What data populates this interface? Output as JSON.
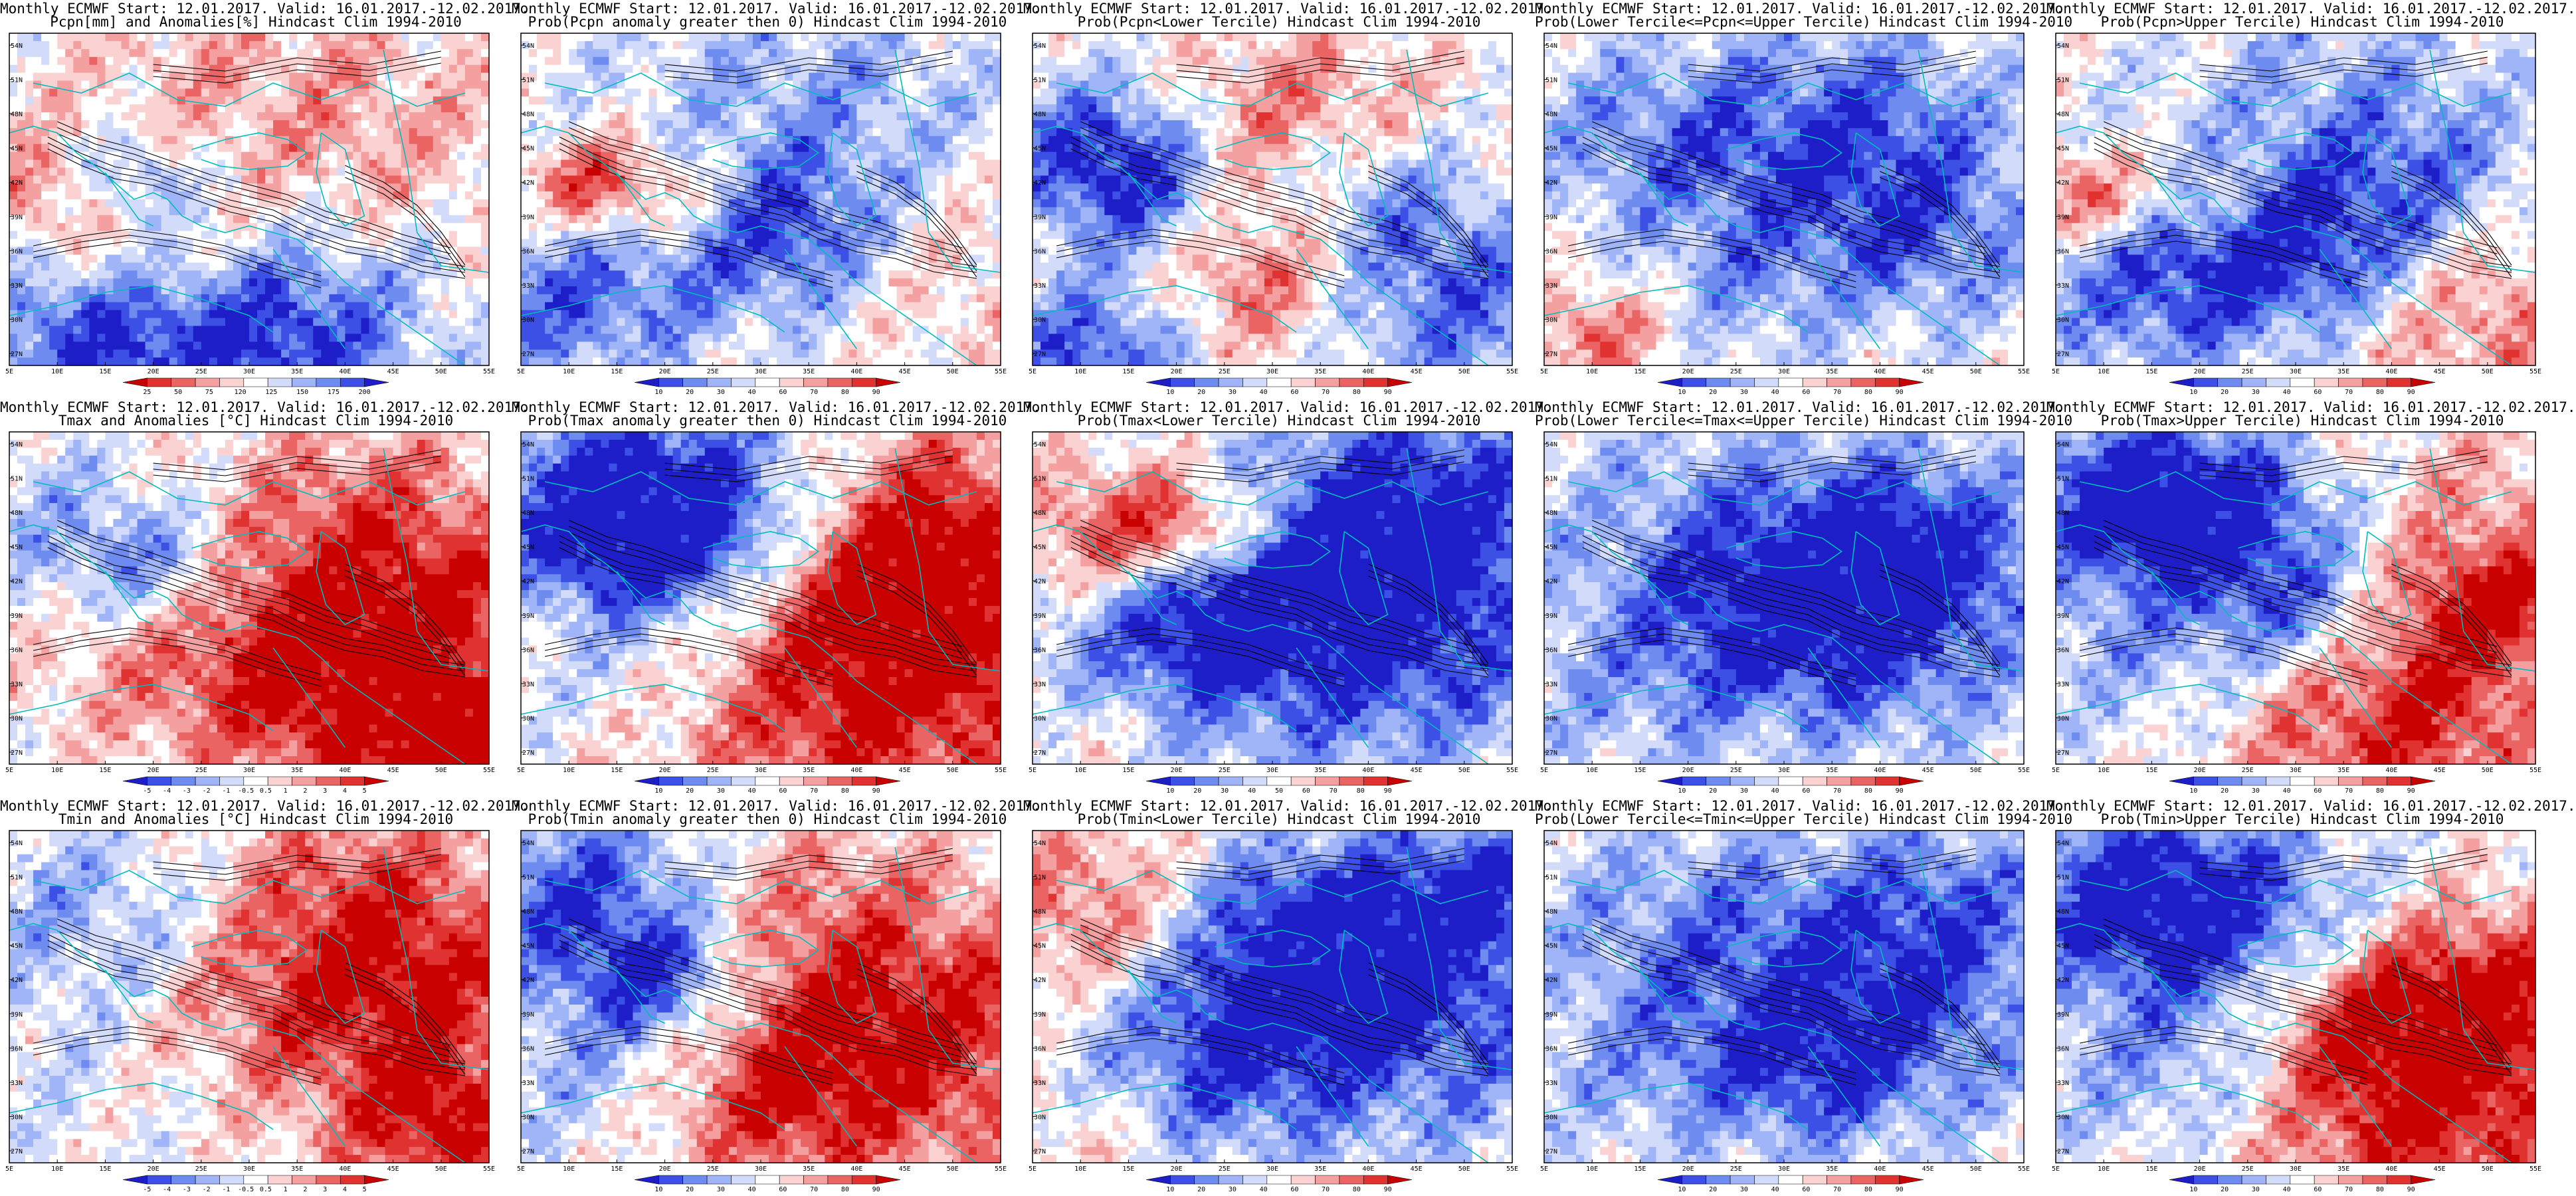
{
  "rows": [
    {
      "id": "pcpn",
      "xticks": [
        "5E",
        "10E",
        "15E",
        "20E",
        "25E",
        "30E",
        "35E",
        "40E",
        "45E",
        "50E",
        "55E"
      ],
      "yticks": [
        "54N",
        "51N",
        "48N",
        "45N",
        "42N",
        "39N",
        "36N",
        "33N",
        "30N",
        "27N"
      ],
      "panels": [
        {
          "line1": "Monthly ECMWF Start: 12.01.2017. Valid: 16.01.2017.-12.02.2017.",
          "line2": "Pcpn[mm] and Anomalies[%] Hindcast Clim 1994-2010",
          "palette": "anom_pcp",
          "pattern": "p0",
          "cbar_labels": [
            "25",
            "50",
            "75",
            "120",
            "125",
            "150",
            "175",
            "200"
          ]
        },
        {
          "line1": "Monthly ECMWF Start: 12.01.2017. Valid: 16.01.2017.-12.02.2017.",
          "line2": "Prob(Pcpn anomaly greater then 0) Hindcast Clim 1994-2010",
          "palette": "prob",
          "pattern": "p1",
          "cbar_labels": [
            "10",
            "20",
            "30",
            "40",
            "60",
            "70",
            "80",
            "90"
          ]
        },
        {
          "line1": "Monthly ECMWF Start: 12.01.2017. Valid: 16.01.2017.-12.02.2017.",
          "line2": "Prob(Pcpn<Lower Tercile) Hindcast Clim 1994-2010",
          "palette": "prob",
          "pattern": "p2",
          "cbar_labels": [
            "10",
            "20",
            "30",
            "40",
            "60",
            "70",
            "80",
            "90"
          ]
        },
        {
          "line1": "Monthly ECMWF Start: 12.01.2017. Valid: 16.01.2017.-12.02.2017.",
          "line2": "Prob(Lower Tercile<=Pcpn<=Upper Tercile) Hindcast Clim 1994-2010",
          "palette": "prob",
          "pattern": "p3",
          "cbar_labels": [
            "10",
            "20",
            "30",
            "40",
            "60",
            "70",
            "80",
            "90"
          ]
        },
        {
          "line1": "Monthly ECMWF Start: 12.01.2017. Valid: 16.01.2017.-12.02.2017.",
          "line2": "Prob(Pcpn>Upper Tercile) Hindcast Clim 1994-2010",
          "palette": "prob",
          "pattern": "p4",
          "cbar_labels": [
            "10",
            "20",
            "30",
            "40",
            "60",
            "70",
            "80",
            "90"
          ]
        }
      ]
    },
    {
      "id": "tmax",
      "xticks": [
        "5E",
        "10E",
        "15E",
        "20E",
        "25E",
        "30E",
        "35E",
        "40E",
        "45E",
        "50E",
        "55E"
      ],
      "yticks": [
        "54N",
        "51N",
        "48N",
        "45N",
        "42N",
        "39N",
        "36N",
        "33N",
        "30N",
        "27N"
      ],
      "panels": [
        {
          "line1": "Monthly ECMWF Start: 12.01.2017. Valid: 16.01.2017.-12.02.2017.",
          "line2": "Tmax and Anomalies [°C] Hindcast Clim 1994-2010",
          "palette": "anom_t",
          "pattern": "t0",
          "cbar_labels": [
            "-5",
            "-4",
            "-3",
            "-2",
            "-1",
            "-0.5",
            "0.5",
            "1",
            "2",
            "3",
            "4",
            "5"
          ]
        },
        {
          "line1": "Monthly ECMWF Start: 12.01.2017. Valid: 16.01.2017.-12.02.2017.",
          "line2": "Prob(Tmax anomaly greater then 0) Hindcast Clim 1994-2010",
          "palette": "prob",
          "pattern": "t1",
          "cbar_labels": [
            "10",
            "20",
            "30",
            "40",
            "60",
            "70",
            "80",
            "90"
          ]
        },
        {
          "line1": "Monthly ECMWF Start: 12.01.2017. Valid: 16.01.2017.-12.02.2017.",
          "line2": "Prob(Tmax<Lower Tercile) Hindcast Clim 1994-2010",
          "palette": "prob",
          "pattern": "t2",
          "cbar_labels": [
            "10",
            "20",
            "30",
            "40",
            "50",
            "60",
            "70",
            "80",
            "90"
          ]
        },
        {
          "line1": "Monthly ECMWF Start: 12.01.2017. Valid: 16.01.2017.-12.02.2017.",
          "line2": "Prob(Lower Tercile<=Tmax<=Upper Tercile) Hindcast Clim 1994-2010",
          "palette": "prob",
          "pattern": "t3",
          "cbar_labels": [
            "10",
            "20",
            "30",
            "40",
            "60",
            "70",
            "80",
            "90"
          ]
        },
        {
          "line1": "Monthly ECMWF Start: 12.01.2017. Valid: 16.01.2017.-12.02.2017.",
          "line2": "Prob(Tmax>Upper Tercile) Hindcast Clim 1994-2010",
          "palette": "prob",
          "pattern": "t4",
          "cbar_labels": [
            "10",
            "20",
            "30",
            "40",
            "60",
            "70",
            "80",
            "90"
          ]
        }
      ]
    },
    {
      "id": "tmin",
      "xticks": [
        "5E",
        "10E",
        "15E",
        "20E",
        "25E",
        "30E",
        "35E",
        "40E",
        "45E",
        "50E",
        "55E"
      ],
      "yticks": [
        "54N",
        "51N",
        "48N",
        "45N",
        "42N",
        "39N",
        "36N",
        "33N",
        "30N",
        "27N"
      ],
      "panels": [
        {
          "line1": "Monthly ECMWF Start: 12.01.2017. Valid: 16.01.2017.-12.02.2017.",
          "line2": "Tmin and Anomalies [°C] Hindcast Clim 1994-2010",
          "palette": "anom_t",
          "pattern": "n0",
          "cbar_labels": [
            "-5",
            "-4",
            "-3",
            "-2",
            "-1",
            "-0.5",
            "0.5",
            "1",
            "2",
            "3",
            "4",
            "5"
          ]
        },
        {
          "line1": "Monthly ECMWF Start: 12.01.2017. Valid: 16.01.2017.-12.02.2017.",
          "line2": "Prob(Tmin anomaly greater then 0) Hindcast Clim 1994-2010",
          "palette": "prob",
          "pattern": "n1",
          "cbar_labels": [
            "10",
            "20",
            "30",
            "40",
            "60",
            "70",
            "80",
            "90"
          ]
        },
        {
          "line1": "Monthly ECMWF Start: 12.01.2017. Valid: 16.01.2017.-12.02.2017.",
          "line2": "Prob(Tmin<Lower Tercile) Hindcast Clim 1994-2010",
          "palette": "prob",
          "pattern": "n2",
          "cbar_labels": [
            "10",
            "20",
            "30",
            "40",
            "60",
            "70",
            "80",
            "90"
          ]
        },
        {
          "line1": "Monthly ECMWF Start: 12.01.2017. Valid: 16.01.2017.-12.02.2017.",
          "line2": "Prob(Lower Tercile<=Tmin<=Upper Tercile) Hindcast Clim 1994-2010",
          "palette": "prob",
          "pattern": "n3",
          "cbar_labels": [
            "10",
            "20",
            "30",
            "40",
            "60",
            "70",
            "80",
            "90"
          ]
        },
        {
          "line1": "Monthly ECMWF Start: 12.01.2017. Valid: 16.01.2017.-12.02.2017.",
          "line2": "Prob(Tmin>Upper Tercile) Hindcast Clim 1994-2010",
          "palette": "prob",
          "pattern": "n4",
          "cbar_labels": [
            "10",
            "20",
            "30",
            "40",
            "60",
            "70",
            "80",
            "90"
          ]
        }
      ]
    }
  ],
  "palettes": {
    "prob": [
      "#1e1ec8",
      "#3c50e6",
      "#6e8cf0",
      "#a0b4f8",
      "#d2dcfa",
      "#ffffff",
      "#fad2d2",
      "#f5a0a0",
      "#eb6464",
      "#e13232",
      "#c80000"
    ],
    "anom_t": [
      "#1e1ec8",
      "#3c50e6",
      "#6e8cf0",
      "#a0b4f8",
      "#d2dcfa",
      "#ffffff",
      "#fad2d2",
      "#f5a0a0",
      "#eb6464",
      "#e13232",
      "#c80000"
    ],
    "anom_pcp": [
      "#c80000",
      "#e13232",
      "#eb6464",
      "#f5a0a0",
      "#fad2d2",
      "#ffffff",
      "#d2dcfa",
      "#a0b4f8",
      "#6e8cf0",
      "#3c50e6",
      "#1e1ec8"
    ]
  },
  "colors": {
    "coast": "#00bcbc",
    "contour": "#000000",
    "frame": "#000000"
  }
}
